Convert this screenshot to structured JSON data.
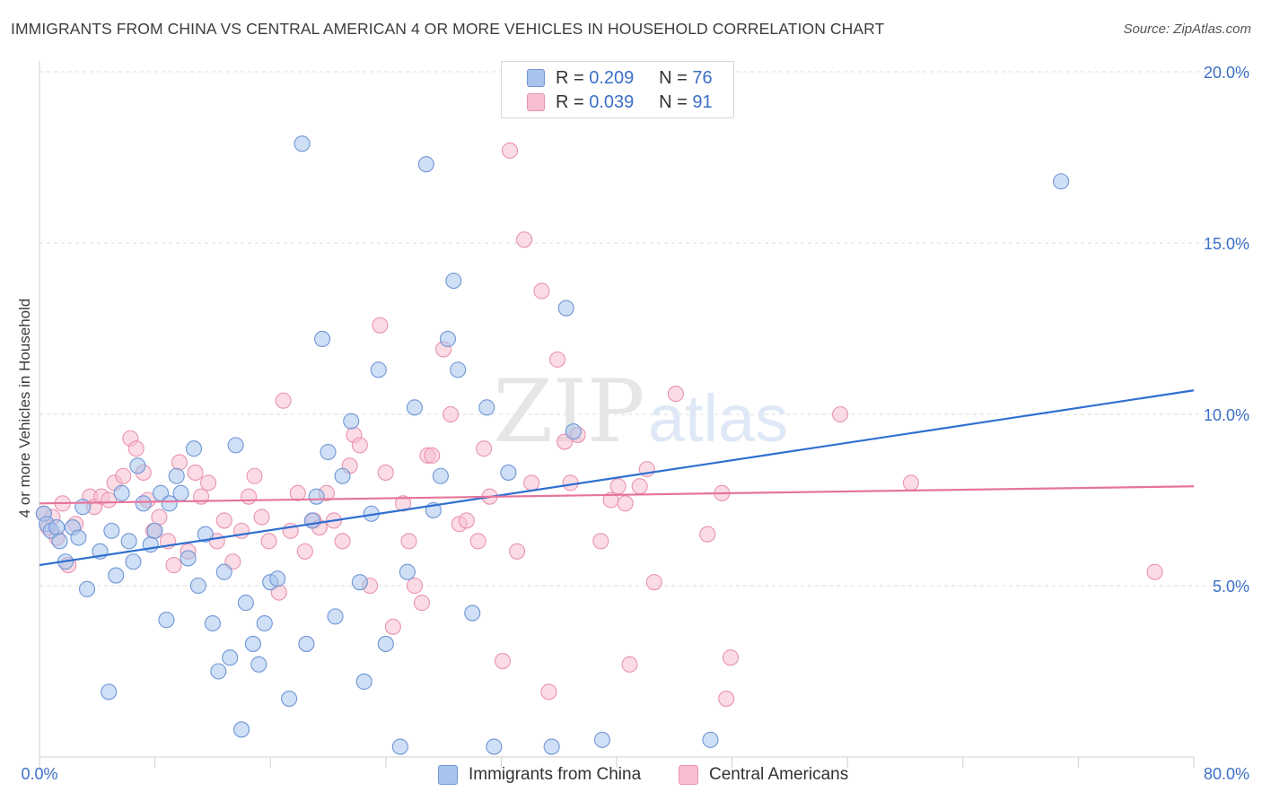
{
  "title": "IMMIGRANTS FROM CHINA VS CENTRAL AMERICAN 4 OR MORE VEHICLES IN HOUSEHOLD CORRELATION CHART",
  "source": "Source: ZipAtlas.com",
  "watermark": {
    "zip": "ZIP",
    "atlas": "atlas"
  },
  "legend": {
    "r_label": "R =",
    "n_label": "N =",
    "series": [
      {
        "r": "0.209",
        "n": "76"
      },
      {
        "r": "0.039",
        "n": "91"
      }
    ]
  },
  "colors": {
    "blue_fill": "#a8c4ec",
    "blue_stroke": "#6f96d6",
    "blue_line": "#2f6fd0",
    "pink_fill": "#f7bfd0",
    "pink_stroke": "#e893ae",
    "pink_line": "#e6749b",
    "axis_label": "#3a6fc8",
    "grid": "#dcdcdc"
  },
  "chart_data": {
    "type": "scatter",
    "title": "IMMIGRANTS FROM CHINA VS CENTRAL AMERICAN 4 OR MORE VEHICLES IN HOUSEHOLD CORRELATION CHART",
    "xlabel": "",
    "ylabel": "4 or more Vehicles in Household",
    "xlim": [
      0,
      80
    ],
    "ylim": [
      0,
      20
    ],
    "x_tick_labels": [
      "0.0%",
      "80.0%"
    ],
    "y_ticks": [
      5,
      10,
      15,
      20
    ],
    "y_tick_labels": [
      "5.0%",
      "10.0%",
      "15.0%",
      "20.0%"
    ],
    "series": [
      {
        "name": "Immigrants from China",
        "color": "blue",
        "trend": {
          "x": [
            0,
            80
          ],
          "y": [
            5.6,
            10.7
          ]
        },
        "points": [
          [
            0.3,
            7.1
          ],
          [
            0.5,
            6.8
          ],
          [
            0.8,
            6.6
          ],
          [
            1.2,
            6.7
          ],
          [
            1.4,
            6.3
          ],
          [
            1.8,
            5.7
          ],
          [
            2.3,
            6.7
          ],
          [
            2.7,
            6.4
          ],
          [
            3.0,
            7.3
          ],
          [
            3.3,
            4.9
          ],
          [
            4.2,
            6.0
          ],
          [
            4.8,
            1.9
          ],
          [
            5.0,
            6.6
          ],
          [
            5.3,
            5.3
          ],
          [
            5.7,
            7.7
          ],
          [
            6.2,
            6.3
          ],
          [
            6.5,
            5.7
          ],
          [
            6.8,
            8.5
          ],
          [
            7.2,
            7.4
          ],
          [
            7.7,
            6.2
          ],
          [
            8.0,
            6.6
          ],
          [
            8.4,
            7.7
          ],
          [
            8.8,
            4.0
          ],
          [
            9.0,
            7.4
          ],
          [
            9.5,
            8.2
          ],
          [
            9.8,
            7.7
          ],
          [
            10.3,
            5.8
          ],
          [
            10.7,
            9.0
          ],
          [
            11.0,
            5.0
          ],
          [
            11.5,
            6.5
          ],
          [
            12.0,
            3.9
          ],
          [
            12.4,
            2.5
          ],
          [
            12.8,
            5.4
          ],
          [
            13.2,
            2.9
          ],
          [
            13.6,
            9.1
          ],
          [
            14.0,
            0.8
          ],
          [
            14.3,
            4.5
          ],
          [
            14.8,
            3.3
          ],
          [
            15.2,
            2.7
          ],
          [
            15.6,
            3.9
          ],
          [
            16.0,
            5.1
          ],
          [
            16.5,
            5.2
          ],
          [
            17.3,
            1.7
          ],
          [
            18.2,
            17.9
          ],
          [
            18.5,
            3.3
          ],
          [
            18.9,
            6.9
          ],
          [
            19.2,
            7.6
          ],
          [
            19.6,
            12.2
          ],
          [
            20.0,
            8.9
          ],
          [
            20.5,
            4.1
          ],
          [
            21.0,
            8.2
          ],
          [
            21.6,
            9.8
          ],
          [
            22.2,
            5.1
          ],
          [
            22.5,
            2.2
          ],
          [
            23.0,
            7.1
          ],
          [
            23.5,
            11.3
          ],
          [
            24.0,
            3.3
          ],
          [
            25.0,
            0.3
          ],
          [
            25.5,
            5.4
          ],
          [
            26.0,
            10.2
          ],
          [
            26.8,
            17.3
          ],
          [
            27.3,
            7.2
          ],
          [
            27.8,
            8.2
          ],
          [
            28.3,
            12.2
          ],
          [
            28.7,
            13.9
          ],
          [
            29.0,
            11.3
          ],
          [
            30.0,
            4.2
          ],
          [
            31.0,
            10.2
          ],
          [
            31.5,
            0.3
          ],
          [
            32.5,
            8.3
          ],
          [
            35.5,
            0.3
          ],
          [
            36.5,
            13.1
          ],
          [
            37.0,
            9.5
          ],
          [
            39.0,
            0.5
          ],
          [
            46.5,
            0.5
          ],
          [
            70.8,
            16.8
          ]
        ]
      },
      {
        "name": "Central Americans",
        "color": "pink",
        "trend": {
          "x": [
            0,
            80
          ],
          "y": [
            7.4,
            7.9
          ]
        },
        "points": [
          [
            0.3,
            7.1
          ],
          [
            0.6,
            6.7
          ],
          [
            0.9,
            7.0
          ],
          [
            1.2,
            6.4
          ],
          [
            1.6,
            7.4
          ],
          [
            2.0,
            5.6
          ],
          [
            2.5,
            6.8
          ],
          [
            3.5,
            7.6
          ],
          [
            3.8,
            7.3
          ],
          [
            4.3,
            7.6
          ],
          [
            4.8,
            7.5
          ],
          [
            5.2,
            8.0
          ],
          [
            5.8,
            8.2
          ],
          [
            6.3,
            9.3
          ],
          [
            6.7,
            9.0
          ],
          [
            7.2,
            8.3
          ],
          [
            7.5,
            7.5
          ],
          [
            7.9,
            6.6
          ],
          [
            8.3,
            7.0
          ],
          [
            8.9,
            6.3
          ],
          [
            9.3,
            5.6
          ],
          [
            9.7,
            8.6
          ],
          [
            10.3,
            6.0
          ],
          [
            10.8,
            8.3
          ],
          [
            11.2,
            7.6
          ],
          [
            11.7,
            8.0
          ],
          [
            12.3,
            6.3
          ],
          [
            12.8,
            6.9
          ],
          [
            13.4,
            5.7
          ],
          [
            14.0,
            6.6
          ],
          [
            14.5,
            7.6
          ],
          [
            14.9,
            8.2
          ],
          [
            15.4,
            7.0
          ],
          [
            15.9,
            6.3
          ],
          [
            16.6,
            4.8
          ],
          [
            16.9,
            10.4
          ],
          [
            17.4,
            6.6
          ],
          [
            17.9,
            7.7
          ],
          [
            18.4,
            6.0
          ],
          [
            19.0,
            6.9
          ],
          [
            19.4,
            6.7
          ],
          [
            19.9,
            7.7
          ],
          [
            20.4,
            6.9
          ],
          [
            21.0,
            6.3
          ],
          [
            21.5,
            8.5
          ],
          [
            21.8,
            9.4
          ],
          [
            22.2,
            9.1
          ],
          [
            22.9,
            5.0
          ],
          [
            23.6,
            12.6
          ],
          [
            24.0,
            8.3
          ],
          [
            24.5,
            3.8
          ],
          [
            25.2,
            7.4
          ],
          [
            25.6,
            6.3
          ],
          [
            26.0,
            5.0
          ],
          [
            26.5,
            4.5
          ],
          [
            26.9,
            8.8
          ],
          [
            27.2,
            8.8
          ],
          [
            28.0,
            11.9
          ],
          [
            28.5,
            10.0
          ],
          [
            29.1,
            6.8
          ],
          [
            29.6,
            6.9
          ],
          [
            30.4,
            6.3
          ],
          [
            30.8,
            9.0
          ],
          [
            31.2,
            7.6
          ],
          [
            32.1,
            2.8
          ],
          [
            32.6,
            17.7
          ],
          [
            33.1,
            6.0
          ],
          [
            33.6,
            15.1
          ],
          [
            34.1,
            8.0
          ],
          [
            34.8,
            13.6
          ],
          [
            35.3,
            1.9
          ],
          [
            35.9,
            11.6
          ],
          [
            36.4,
            9.2
          ],
          [
            36.8,
            8.0
          ],
          [
            37.3,
            9.4
          ],
          [
            38.9,
            6.3
          ],
          [
            39.6,
            7.5
          ],
          [
            40.1,
            7.9
          ],
          [
            40.6,
            7.4
          ],
          [
            40.9,
            2.7
          ],
          [
            41.6,
            7.9
          ],
          [
            42.1,
            8.4
          ],
          [
            42.6,
            5.1
          ],
          [
            44.1,
            10.6
          ],
          [
            46.3,
            6.5
          ],
          [
            47.3,
            7.7
          ],
          [
            47.6,
            1.7
          ],
          [
            47.9,
            2.9
          ],
          [
            55.5,
            10.0
          ],
          [
            60.4,
            8.0
          ],
          [
            77.3,
            5.4
          ]
        ]
      }
    ]
  },
  "bottom_legend": {
    "items": [
      {
        "label": "Immigrants from China"
      },
      {
        "label": "Central Americans"
      }
    ]
  }
}
